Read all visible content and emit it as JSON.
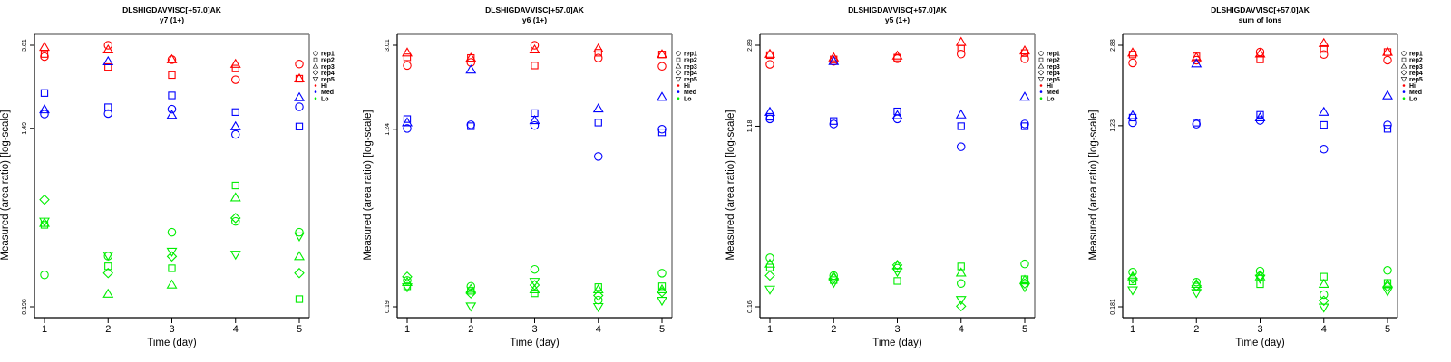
{
  "legend": {
    "reps": [
      {
        "label": "rep1",
        "shape": "circle"
      },
      {
        "label": "rep2",
        "shape": "square"
      },
      {
        "label": "rep3",
        "shape": "triangle-up"
      },
      {
        "label": "rep4",
        "shape": "diamond"
      },
      {
        "label": "rep5",
        "shape": "triangle-down"
      }
    ],
    "groups": [
      {
        "label": "Hi",
        "color": "#ff0000"
      },
      {
        "label": "Med",
        "color": "#0000ff"
      },
      {
        "label": "Lo",
        "color": "#00ee00"
      }
    ]
  },
  "chart_data": [
    {
      "type": "scatter",
      "title": "DLSHIGDAVVISC[+57.0]AK",
      "subtitle": "y7 (1+)",
      "xlabel": "Time (day)",
      "ylabel": "Measured (area ratio) [log-scale]",
      "x": [
        1,
        2,
        3,
        4,
        5
      ],
      "xticks": [
        "1",
        "2",
        "3",
        "4",
        "5"
      ],
      "yscale": "log",
      "yticks": [
        "0.198",
        "1.49",
        "3.81"
      ],
      "ylim": [
        0.198,
        3.81
      ],
      "series": [
        {
          "group": "Hi",
          "rep": "rep1",
          "values": [
            3.35,
            3.81,
            3.24,
            2.58,
            3.08
          ]
        },
        {
          "group": "Hi",
          "rep": "rep2",
          "values": [
            3.45,
            2.98,
            2.72,
            2.93,
            2.61
          ]
        },
        {
          "group": "Hi",
          "rep": "rep3",
          "values": [
            3.73,
            3.62,
            3.24,
            3.08,
            2.61
          ]
        },
        {
          "group": "Med",
          "rep": "rep1",
          "values": [
            1.75,
            1.76,
            1.85,
            1.39,
            1.9
          ]
        },
        {
          "group": "Med",
          "rep": "rep2",
          "values": [
            2.22,
            1.89,
            2.16,
            1.79,
            1.52
          ]
        },
        {
          "group": "Med",
          "rep": "rep3",
          "values": [
            1.84,
            3.17,
            1.73,
            1.52,
            2.11
          ]
        },
        {
          "group": "Lo",
          "rep": "rep1",
          "values": [
            0.284,
            0.351,
            0.46,
            0.52,
            0.46
          ]
        },
        {
          "group": "Lo",
          "rep": "rep2",
          "values": [
            0.5,
            0.313,
            0.306,
            0.78,
            0.216
          ]
        },
        {
          "group": "Lo",
          "rep": "rep3",
          "values": [
            0.51,
            0.229,
            0.254,
            0.68,
            0.35
          ]
        },
        {
          "group": "Lo",
          "rep": "rep4",
          "values": [
            0.665,
            0.29,
            0.35,
            0.54,
            0.29
          ]
        },
        {
          "group": "Lo",
          "rep": "rep5",
          "values": [
            0.52,
            0.354,
            0.37,
            0.358,
            0.44
          ]
        }
      ]
    },
    {
      "type": "scatter",
      "title": "DLSHIGDAVVISC[+57.0]AK",
      "subtitle": "y6 (1+)",
      "xlabel": "Time (day)",
      "ylabel": "Measured (area ratio) [log-scale]",
      "x": [
        1,
        2,
        3,
        4,
        5
      ],
      "xticks": [
        "1",
        "2",
        "3",
        "4",
        "5"
      ],
      "yscale": "log",
      "yticks": [
        "0.19",
        "1.24",
        "3.01"
      ],
      "ylim": [
        0.19,
        3.01
      ],
      "series": [
        {
          "group": "Hi",
          "rep": "rep1",
          "values": [
            2.43,
            2.51,
            3.01,
            2.63,
            2.41
          ]
        },
        {
          "group": "Hi",
          "rep": "rep2",
          "values": [
            2.65,
            2.63,
            2.43,
            2.78,
            2.73
          ]
        },
        {
          "group": "Hi",
          "rep": "rep3",
          "values": [
            2.78,
            2.63,
            2.87,
            2.9,
            2.73
          ]
        },
        {
          "group": "Med",
          "rep": "rep1",
          "values": [
            1.25,
            1.3,
            1.29,
            0.93,
            1.24
          ]
        },
        {
          "group": "Med",
          "rep": "rep2",
          "values": [
            1.38,
            1.28,
            1.47,
            1.33,
            1.2
          ]
        },
        {
          "group": "Med",
          "rep": "rep3",
          "values": [
            1.33,
            2.32,
            1.36,
            1.54,
            1.74
          ]
        },
        {
          "group": "Lo",
          "rep": "rep1",
          "values": [
            0.251,
            0.236,
            0.282,
            0.204,
            0.271
          ]
        },
        {
          "group": "Lo",
          "rep": "rep2",
          "values": [
            0.236,
            0.225,
            0.219,
            0.234,
            0.236
          ]
        },
        {
          "group": "Lo",
          "rep": "rep3",
          "values": [
            0.246,
            0.229,
            0.228,
            0.228,
            0.228
          ]
        },
        {
          "group": "Lo",
          "rep": "rep4",
          "values": [
            0.261,
            0.219,
            0.239,
            0.214,
            0.222
          ]
        },
        {
          "group": "Lo",
          "rep": "rep5",
          "values": [
            0.234,
            0.191,
            0.248,
            0.19,
            0.203
          ]
        }
      ]
    },
    {
      "type": "scatter",
      "title": "DLSHIGDAVVISC[+57.0]AK",
      "subtitle": "y5 (1+)",
      "xlabel": "Time (day)",
      "ylabel": "Measured (area ratio) [log-scale]",
      "x": [
        1,
        2,
        3,
        4,
        5
      ],
      "xticks": [
        "1",
        "2",
        "3",
        "4",
        "5"
      ],
      "yscale": "log",
      "yticks": [
        "0.16",
        "1.18",
        "2.89"
      ],
      "ylim": [
        0.16,
        2.89
      ],
      "series": [
        {
          "group": "Hi",
          "rep": "rep1",
          "values": [
            2.34,
            2.42,
            2.49,
            2.62,
            2.49
          ]
        },
        {
          "group": "Hi",
          "rep": "rep2",
          "values": [
            2.59,
            2.47,
            2.52,
            2.78,
            2.65
          ]
        },
        {
          "group": "Hi",
          "rep": "rep3",
          "values": [
            2.62,
            2.52,
            2.57,
            2.99,
            2.72
          ]
        },
        {
          "group": "Med",
          "rep": "rep1",
          "values": [
            1.28,
            1.21,
            1.28,
            0.94,
            1.21
          ]
        },
        {
          "group": "Med",
          "rep": "rep2",
          "values": [
            1.31,
            1.25,
            1.39,
            1.18,
            1.18
          ]
        },
        {
          "group": "Med",
          "rep": "rep3",
          "values": [
            1.38,
            2.42,
            1.33,
            1.34,
            1.63
          ]
        },
        {
          "group": "Lo",
          "rep": "rep1",
          "values": [
            0.275,
            0.226,
            0.245,
            0.207,
            0.257
          ]
        },
        {
          "group": "Lo",
          "rep": "rep2",
          "values": [
            0.247,
            0.215,
            0.213,
            0.25,
            0.217
          ]
        },
        {
          "group": "Lo",
          "rep": "rep3",
          "values": [
            0.257,
            0.224,
            0.252,
            0.233,
            0.215
          ]
        },
        {
          "group": "Lo",
          "rep": "rep4",
          "values": [
            0.226,
            0.219,
            0.254,
            0.161,
            0.207
          ]
        },
        {
          "group": "Lo",
          "rep": "rep5",
          "values": [
            0.194,
            0.209,
            0.236,
            0.173,
            0.199
          ]
        }
      ]
    },
    {
      "type": "scatter",
      "title": "DLSHIGDAVVISC[+57.0]AK",
      "subtitle": "sum of Ions",
      "xlabel": "Time (day)",
      "ylabel": "Measured (area ratio) [log-scale]",
      "x": [
        1,
        2,
        3,
        4,
        5
      ],
      "xticks": [
        "1",
        "2",
        "3",
        "4",
        "5"
      ],
      "yscale": "log",
      "yticks": [
        "0.181",
        "1.23",
        "2.88"
      ],
      "ylim": [
        0.181,
        2.88
      ],
      "series": [
        {
          "group": "Hi",
          "rep": "rep1",
          "values": [
            2.39,
            2.46,
            2.68,
            2.61,
            2.46
          ]
        },
        {
          "group": "Hi",
          "rep": "rep2",
          "values": [
            2.61,
            2.56,
            2.48,
            2.77,
            2.68
          ]
        },
        {
          "group": "Hi",
          "rep": "rep3",
          "values": [
            2.66,
            2.53,
            2.63,
            2.94,
            2.68
          ]
        },
        {
          "group": "Med",
          "rep": "rep1",
          "values": [
            1.27,
            1.25,
            1.3,
            0.96,
            1.24
          ]
        },
        {
          "group": "Med",
          "rep": "rep2",
          "values": [
            1.34,
            1.27,
            1.38,
            1.24,
            1.19
          ]
        },
        {
          "group": "Med",
          "rep": "rep3",
          "values": [
            1.37,
            2.37,
            1.34,
            1.42,
            1.69
          ]
        },
        {
          "group": "Lo",
          "rep": "rep1",
          "values": [
            0.261,
            0.235,
            0.264,
            0.206,
            0.266
          ]
        },
        {
          "group": "Lo",
          "rep": "rep2",
          "values": [
            0.237,
            0.224,
            0.23,
            0.249,
            0.233
          ]
        },
        {
          "group": "Lo",
          "rep": "rep3",
          "values": [
            0.249,
            0.23,
            0.249,
            0.23,
            0.23
          ]
        },
        {
          "group": "Lo",
          "rep": "rep4",
          "values": [
            0.244,
            0.226,
            0.252,
            0.193,
            0.224
          ]
        },
        {
          "group": "Lo",
          "rep": "rep5",
          "values": [
            0.216,
            0.21,
            0.244,
            0.18,
            0.214
          ]
        }
      ]
    }
  ]
}
